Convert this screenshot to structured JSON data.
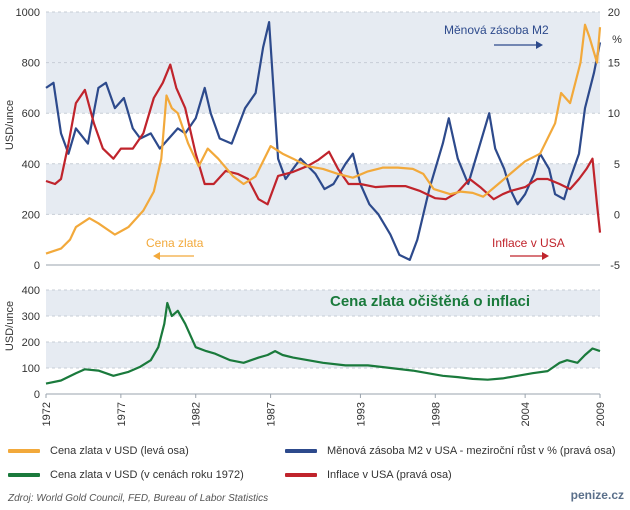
{
  "chart_data": [
    {
      "type": "line",
      "id": "top",
      "x_range": [
        1972,
        2009
      ],
      "y_left": {
        "label": "USD/unce",
        "ylim": [
          0,
          1000
        ],
        "ticks": [
          0,
          200,
          400,
          600,
          800,
          1000
        ]
      },
      "y_right": {
        "label": "%",
        "ylim": [
          -5,
          20
        ],
        "ticks": [
          -5,
          0,
          5,
          10,
          15,
          20
        ]
      },
      "annotations": {
        "gold": "Cena zlata",
        "m2": "Měnová zásoba M2",
        "inflation": "Inflace v USA"
      },
      "series": [
        {
          "name": "Cena zlata v USD (levá osa)",
          "axis": "left",
          "color": "#f2a93b",
          "x": [
            1972,
            1973,
            1973.6,
            1974,
            1974.9,
            1975.5,
            1976.6,
            1977.5,
            1978.5,
            1979.2,
            1979.7,
            1980.05,
            1980.4,
            1980.8,
            1981.5,
            1982.2,
            1982.8,
            1983.5,
            1984.5,
            1985.2,
            1986,
            1986.5,
            1987,
            1987.8,
            1988.5,
            1989.5,
            1990.5,
            1991.5,
            1992.5,
            1993.5,
            1994.5,
            1995.5,
            1996.5,
            1997.2,
            1997.9,
            1999,
            1999.7,
            2000.5,
            2001.2,
            2002,
            2003,
            2004,
            2005,
            2006,
            2006.4,
            2007,
            2007.7,
            2008,
            2008.3,
            2008.8,
            2009
          ],
          "y": [
            45,
            65,
            100,
            150,
            185,
            165,
            120,
            150,
            215,
            290,
            420,
            670,
            620,
            600,
            480,
            390,
            460,
            420,
            350,
            320,
            350,
            410,
            470,
            440,
            420,
            390,
            380,
            360,
            345,
            370,
            385,
            385,
            380,
            360,
            300,
            280,
            290,
            285,
            270,
            310,
            360,
            410,
            440,
            560,
            680,
            640,
            800,
            950,
            900,
            800,
            940
          ]
        },
        {
          "name": "Měnová zásoba M2 v USA - meziroční růst v % (pravá osa)",
          "axis": "right",
          "color": "#2d4a8c",
          "x": [
            1972,
            1972.5,
            1973,
            1973.5,
            1974,
            1974.8,
            1975.5,
            1976,
            1976.6,
            1977.2,
            1977.8,
            1978.3,
            1979,
            1979.6,
            1980.2,
            1980.8,
            1981.3,
            1982,
            1982.6,
            1983,
            1983.6,
            1984.4,
            1985.3,
            1986,
            1986.5,
            1986.9,
            1987.5,
            1988,
            1989,
            1990,
            1990.6,
            1991.2,
            1992,
            1992.5,
            1993,
            1993.6,
            1994.2,
            1995,
            1995.6,
            1996.3,
            1996.8,
            1997.6,
            1998.5,
            1998.9,
            1999.5,
            2000.2,
            2001,
            2001.6,
            2002,
            2002.6,
            2003,
            2003.5,
            2004,
            2004.6,
            2005,
            2005.6,
            2006,
            2006.6,
            2007,
            2007.6,
            2008,
            2008.6,
            2009
          ],
          "y": [
            12.5,
            13,
            8,
            6,
            8.5,
            7,
            12.5,
            13,
            10.5,
            11.5,
            8.5,
            7.5,
            8,
            6.5,
            7.5,
            8.5,
            8,
            9.5,
            12.5,
            10,
            7.5,
            7,
            10.5,
            12,
            16.5,
            19,
            5.5,
            3.5,
            5.5,
            4,
            2.5,
            3,
            5,
            6,
            3,
            1,
            0,
            -2,
            -4,
            -4.5,
            -2.5,
            2.5,
            7,
            9.5,
            5.5,
            3,
            7,
            10,
            6.5,
            4.5,
            2.5,
            1,
            2,
            4,
            6,
            4.5,
            2,
            1.5,
            3.5,
            6,
            10.5,
            14,
            17
          ]
        },
        {
          "name": "Inflace v USA (pravá osa)",
          "axis": "right",
          "color": "#c0242c",
          "x": [
            1972,
            1972.6,
            1973,
            1973.5,
            1974,
            1974.6,
            1975.2,
            1975.8,
            1976.5,
            1977,
            1977.8,
            1978.5,
            1979.2,
            1979.8,
            1980.3,
            1980.7,
            1981.3,
            1982,
            1982.6,
            1983.2,
            1984,
            1984.8,
            1985.5,
            1986.2,
            1986.8,
            1987.5,
            1988.5,
            1989.5,
            1990.2,
            1990.9,
            1991.5,
            1992.2,
            1993,
            1994,
            1995,
            1996,
            1997,
            1998,
            1998.7,
            1999.5,
            2000.3,
            2001,
            2001.9,
            2002.5,
            2003,
            2004,
            2004.8,
            2005.5,
            2006.3,
            2007,
            2007.6,
            2008.1,
            2008.5,
            2008.8,
            2009
          ],
          "y": [
            3.3,
            3,
            3.5,
            7,
            11,
            12.3,
            9,
            6.5,
            5.5,
            6.5,
            6.5,
            8,
            11.5,
            13,
            14.8,
            12.5,
            10.5,
            6,
            3,
            3,
            4.3,
            4,
            3.5,
            1.5,
            1,
            3.8,
            4.2,
            4.8,
            5.4,
            6.2,
            4.5,
            3,
            3,
            2.7,
            2.8,
            2.8,
            2.3,
            1.6,
            1.5,
            2.2,
            3.5,
            2.7,
            1.5,
            2,
            2.3,
            2.7,
            3.5,
            3.5,
            3,
            2.5,
            3.5,
            4.5,
            5.5,
            1,
            -1.8
          ]
        }
      ]
    },
    {
      "type": "line",
      "id": "bottom",
      "title": "Cena zlata očištěná o inflaci",
      "x_range": [
        1972,
        2009
      ],
      "y_left": {
        "label": "USD/unce",
        "ylim": [
          0,
          400
        ],
        "ticks": [
          0,
          100,
          200,
          300,
          400
        ]
      },
      "x_ticks": [
        "1972",
        "1977",
        "1982",
        "1987",
        "1993",
        "1998",
        "2004",
        "2009"
      ],
      "x_tick_values": [
        1972,
        1977,
        1982,
        1987,
        1993,
        1998,
        2004,
        2009
      ],
      "series": [
        {
          "name": "Cena zlata v USD (v cenách roku 1972)",
          "color": "#1a7a3c",
          "x": [
            1972,
            1973,
            1974,
            1974.6,
            1975.5,
            1976.5,
            1977.5,
            1978.3,
            1979,
            1979.5,
            1979.9,
            1980.1,
            1980.4,
            1980.8,
            1981.3,
            1982,
            1982.7,
            1983.3,
            1984.3,
            1985.2,
            1986.2,
            1986.8,
            1987.3,
            1987.8,
            1988.5,
            1989.5,
            1990.5,
            1992,
            1993.5,
            1995,
            1996.5,
            1997.5,
            1998.5,
            1999.5,
            2000.5,
            2001.5,
            2002.5,
            2003.5,
            2004.5,
            2005.5,
            2006.3,
            2006.8,
            2007.5,
            2008,
            2008.5,
            2009
          ],
          "y": [
            40,
            52,
            80,
            95,
            90,
            70,
            85,
            105,
            130,
            180,
            270,
            350,
            300,
            320,
            270,
            180,
            165,
            155,
            130,
            120,
            140,
            150,
            165,
            150,
            140,
            130,
            120,
            110,
            110,
            100,
            90,
            80,
            70,
            65,
            58,
            55,
            60,
            70,
            80,
            88,
            120,
            130,
            120,
            150,
            175,
            165
          ]
        }
      ]
    }
  ],
  "legend": {
    "gold_left": "Cena zlata v USD (levá osa)",
    "m2": "Měnová zásoba M2 v USA - meziroční růst v % (pravá osa)",
    "gold_real": "Cena zlata v USD (v cenách roku 1972)",
    "inflation": "Inflace v USA (pravá osa)"
  },
  "source": "Zdroj: World Gold Council, FED, Bureau of Labor Statistics",
  "brand": "penize.cz",
  "colors": {
    "gold": "#f2a93b",
    "m2": "#2d4a8c",
    "inflation": "#c0242c",
    "gold_real": "#1a7a3c",
    "band": "#e6ebf2",
    "green_title": "#1a7a3c"
  }
}
